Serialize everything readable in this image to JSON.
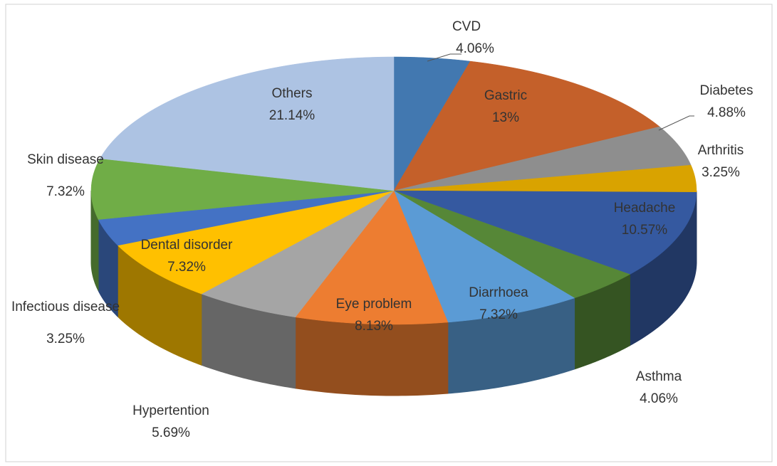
{
  "chart_data": {
    "type": "pie3d",
    "categories": [
      "CVD",
      "Gastric",
      "Diabetes",
      "Arthritis",
      "Headache",
      "Asthma",
      "Diarrhoea",
      "Eye problem",
      "Hypertention",
      "Dental disorder",
      "Infectious disease",
      "Skin disease",
      "Others"
    ],
    "values": [
      4.06,
      13,
      4.88,
      3.25,
      10.57,
      4.06,
      7.32,
      8.13,
      5.69,
      7.32,
      3.25,
      7.32,
      21.14
    ],
    "value_labels": [
      "4.06%",
      "13%",
      "4.88%",
      "3.25%",
      "10.57%",
      "4.06%",
      "7.32%",
      "8.13%",
      "5.69%",
      "7.32%",
      "3.25%",
      "7.32%",
      "21.14%"
    ],
    "colors": [
      "#4278b0",
      "#c4602a",
      "#8e8e8e",
      "#d9a300",
      "#3559a0",
      "#568737",
      "#5b9bd5",
      "#ed7d31",
      "#a5a5a5",
      "#ffc000",
      "#4472c4",
      "#70ad47",
      "#adc3e3"
    ]
  }
}
